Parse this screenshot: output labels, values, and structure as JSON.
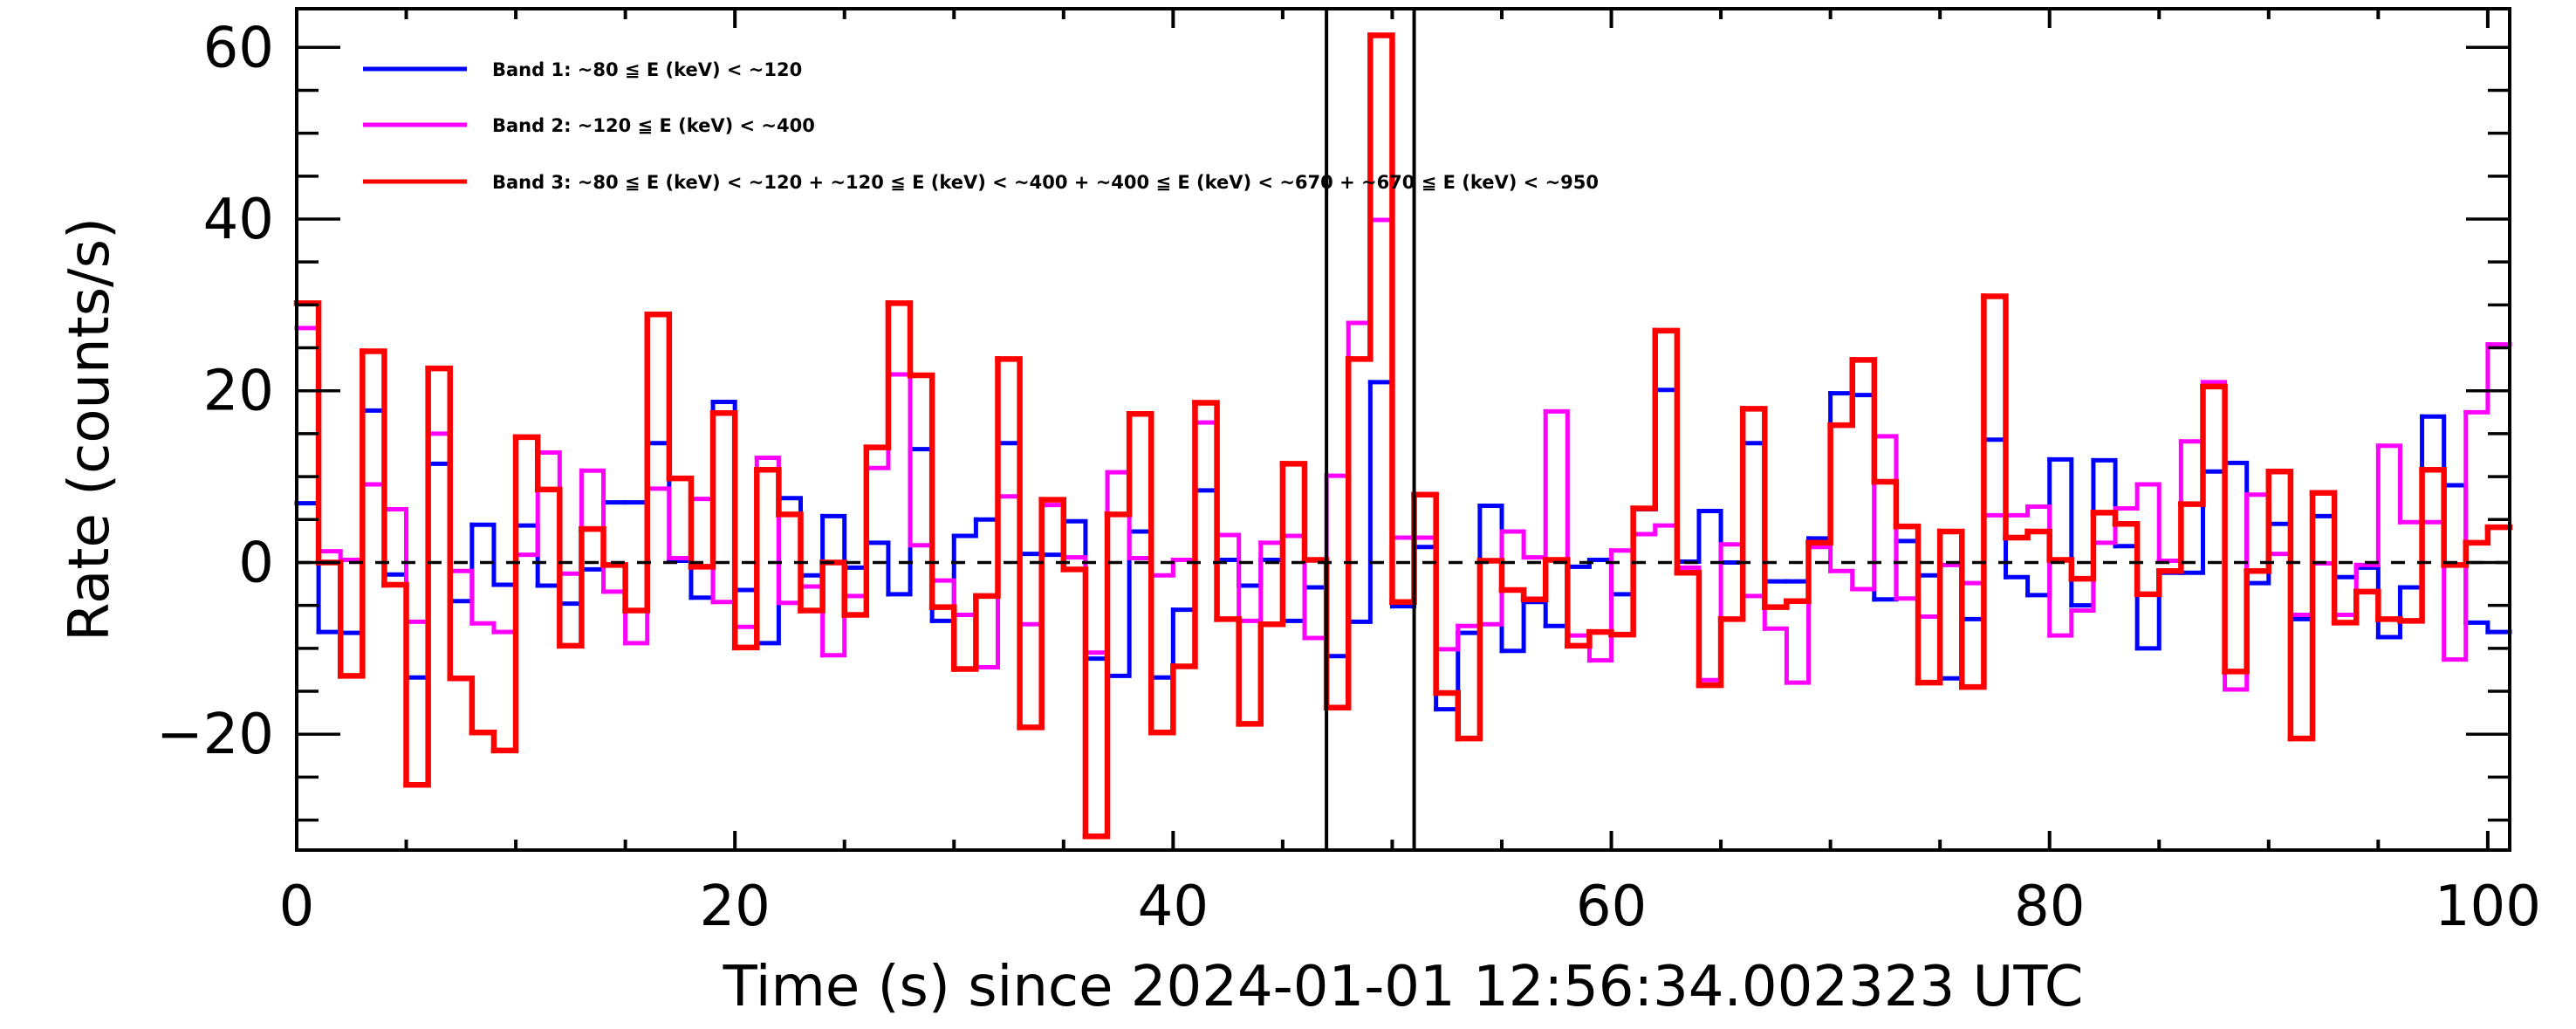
{
  "chart_data": {
    "type": "line",
    "style": "histogram-step",
    "title": "",
    "xlabel": "Time (s) since 2024-01-01 12:56:34.002323 UTC",
    "ylabel": "Rate (counts/s)",
    "xlim": [
      0,
      101
    ],
    "ylim": [
      -33.5,
      64.5
    ],
    "xticks": [
      0,
      20,
      40,
      60,
      80,
      100
    ],
    "xtick_labels": [
      "0",
      "20",
      "40",
      "60",
      "80",
      "100"
    ],
    "xminor_step": 5,
    "yticks": [
      -20,
      0,
      20,
      40,
      60
    ],
    "ytick_labels": [
      "−20",
      "0",
      "20",
      "40",
      "60"
    ],
    "yminor_step": 5,
    "grid": false,
    "legend_position": "top-left",
    "bin_width": 1,
    "bin_start": 0,
    "reference_line_y": 0,
    "vertical_markers_x": [
      47,
      51
    ],
    "series": [
      {
        "name": "Band 1: ~80 ≦ E (keV) < ~120",
        "color": "#0000ff",
        "values": [
          6.9,
          -8.1,
          -8.2,
          17.7,
          -1.4,
          -13.4,
          11.5,
          -4.5,
          4.4,
          -2.6,
          4.3,
          -2.7,
          -4.8,
          -0.8,
          7.0,
          7.0,
          13.9,
          0.2,
          -4.1,
          18.7,
          -3.2,
          -9.4,
          7.5,
          -1.5,
          5.4,
          -0.6,
          2.3,
          -3.7,
          13.2,
          -6.8,
          3.1,
          5.0,
          13.9,
          1.0,
          0.9,
          4.8,
          -11.2,
          -13.2,
          3.6,
          -13.4,
          -5.5,
          8.4,
          0.3,
          -2.7,
          0.3,
          -6.8,
          -2.9,
          -10.9,
          -6.9,
          21.0,
          -5.1,
          1.8,
          -17.1,
          -8.2,
          6.6,
          -10.3,
          -4.6,
          -7.4,
          -0.5,
          0.3,
          -3.7,
          6.2,
          20.1,
          0.1,
          6.0,
          0.0,
          13.9,
          -2.2,
          -2.2,
          2.8,
          19.7,
          19.5,
          -4.3,
          2.5,
          -1.5,
          -13.5,
          -6.6,
          14.3,
          -1.7,
          -3.8,
          12.0,
          -5.0,
          11.9,
          1.9,
          -10.0,
          -1.2,
          -1.2,
          10.6,
          11.6,
          -2.4,
          4.5,
          -6.6,
          5.4,
          -1.7,
          -0.6,
          -8.7,
          -2.9,
          17.0,
          9.0,
          -7.0,
          -8.1
        ]
      },
      {
        "name": "Band 2: ~120 ≦ E (keV) < ~400",
        "color": "#ff00ff",
        "values": [
          27.3,
          1.3,
          0.3,
          9.1,
          6.2,
          -6.9,
          15.0,
          -1.0,
          -7.1,
          -8.1,
          0.9,
          12.8,
          -1.3,
          10.7,
          -3.4,
          -9.4,
          8.6,
          0.5,
          7.4,
          -4.6,
          -7.5,
          12.2,
          -4.7,
          -2.8,
          -10.8,
          -3.9,
          11.0,
          21.9,
          2.0,
          -2.1,
          -6.1,
          -12.2,
          7.7,
          -7.2,
          6.7,
          0.6,
          -10.5,
          10.5,
          0.5,
          -1.5,
          0.3,
          16.3,
          3.2,
          -6.8,
          2.3,
          3.1,
          -8.8,
          10.1,
          27.9,
          39.9,
          2.9,
          2.9,
          -10.1,
          -7.4,
          -7.2,
          3.6,
          0.6,
          17.6,
          -8.5,
          -11.4,
          1.4,
          3.3,
          4.3,
          -0.6,
          -13.7,
          2.1,
          -3.9,
          -7.7,
          -14.0,
          1.8,
          -1.0,
          -3.1,
          14.7,
          -4.2,
          -6.3,
          -0.3,
          -2.4,
          5.5,
          5.5,
          6.5,
          -8.5,
          -5.6,
          2.3,
          6.3,
          9.1,
          0.2,
          14.1,
          21.0,
          -14.8,
          7.9,
          1.0,
          -6.1,
          -0.1,
          -6.1,
          -0.3,
          13.6,
          4.7,
          4.7,
          -11.3,
          17.5,
          25.4
        ]
      },
      {
        "name": "Band 3: ~80 ≦ E (keV) < ~120 + ~120 ≦ E (keV) < ~400 + ~400 ≦ E (keV) < ~670 + ~670 ≦ E (keV) < ~950",
        "color": "#ff0000",
        "values": [
          30.2,
          0.0,
          -13.2,
          24.6,
          -2.6,
          -25.9,
          22.6,
          -13.5,
          -19.8,
          -21.9,
          14.6,
          8.5,
          -9.7,
          3.9,
          -0.3,
          -5.6,
          28.9,
          9.8,
          -0.5,
          17.4,
          -9.9,
          10.8,
          5.6,
          -5.6,
          0.0,
          -6.1,
          13.4,
          30.2,
          21.8,
          -5.2,
          -12.4,
          -3.9,
          23.7,
          -19.2,
          7.3,
          -0.8,
          -31.9,
          5.6,
          17.3,
          -19.8,
          -12.1,
          18.6,
          -6.6,
          -18.8,
          -7.2,
          11.5,
          0.3,
          -16.9,
          23.7,
          61.4,
          -4.6,
          7.9,
          -15.2,
          -20.5,
          0.2,
          -3.2,
          -4.3,
          0.3,
          -9.7,
          -8.1,
          -8.4,
          6.3,
          27.0,
          -1.2,
          -14.3,
          -6.6,
          17.9,
          -5.2,
          -4.5,
          2.3,
          16.0,
          23.6,
          9.4,
          4.2,
          -14.0,
          3.6,
          -14.5,
          31.0,
          2.9,
          3.6,
          0.3,
          -1.9,
          5.8,
          4.5,
          -3.7,
          -1.0,
          6.8,
          20.5,
          -12.7,
          -1.0,
          10.6,
          -20.5,
          8.1,
          -7.0,
          -3.4,
          -6.6,
          -6.8,
          10.8,
          -0.3,
          2.3,
          4.1
        ]
      }
    ]
  }
}
